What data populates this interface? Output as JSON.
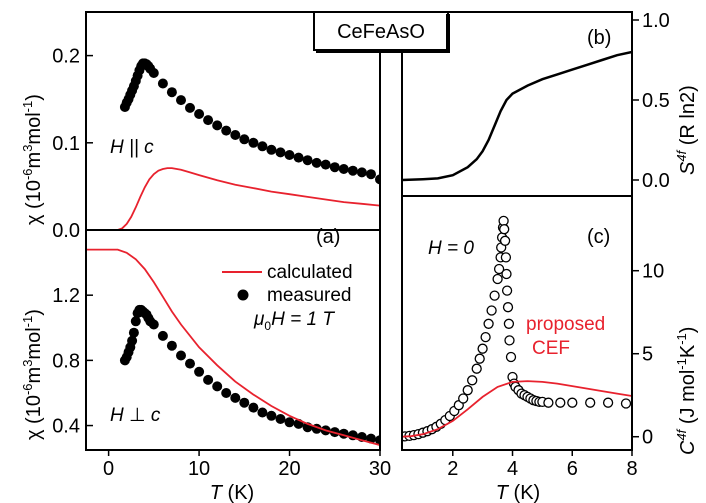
{
  "title_badge": "CeFeAsO",
  "colors": {
    "calculated": "#e8222e",
    "measured": "#000000",
    "frame": "#000000"
  },
  "chart_data": [
    {
      "type": "line",
      "panel": "top-left",
      "xlim": [
        -2.5,
        30
      ],
      "ylim": [
        0,
        0.25
      ],
      "yticks": [
        0.0,
        0.1,
        0.2
      ],
      "ytick_labels": [
        "0.0",
        "0.1",
        "0.2"
      ],
      "annotation": "H || c",
      "series": [
        {
          "style": "filled-circle",
          "x": [
            1.8,
            2.0,
            2.2,
            2.4,
            2.6,
            2.8,
            3.0,
            3.2,
            3.4,
            3.6,
            3.8,
            4.0,
            4.2,
            4.4,
            4.6,
            5.0,
            6.0,
            7.0,
            8.0,
            9.0,
            10.0,
            11.0,
            12.0,
            13.0,
            14.0,
            15.0,
            16.0,
            17.0,
            18.0,
            19.0,
            20.0,
            21.0,
            22.0,
            23.0,
            24.0,
            25.0,
            26.0,
            27.0,
            28.0,
            29.0,
            30.0
          ],
          "y": [
            0.141,
            0.146,
            0.15,
            0.155,
            0.16,
            0.165,
            0.171,
            0.177,
            0.183,
            0.188,
            0.191,
            0.191,
            0.19,
            0.188,
            0.185,
            0.18,
            0.168,
            0.158,
            0.149,
            0.14,
            0.133,
            0.126,
            0.12,
            0.114,
            0.109,
            0.104,
            0.1,
            0.096,
            0.092,
            0.089,
            0.086,
            0.083,
            0.08,
            0.077,
            0.075,
            0.072,
            0.07,
            0.068,
            0.066,
            0.064,
            0.058
          ]
        },
        {
          "style": "line",
          "x": [
            1.0,
            1.5,
            2.0,
            2.5,
            3.0,
            3.5,
            4.0,
            4.5,
            5.0,
            5.5,
            6.0,
            6.5,
            7.0,
            8.0,
            9.0,
            10.0,
            12.0,
            14.0,
            16.0,
            18.0,
            20.0,
            22.0,
            24.0,
            26.0,
            28.0,
            30.0
          ],
          "y": [
            0.0,
            0.002,
            0.007,
            0.015,
            0.026,
            0.038,
            0.049,
            0.058,
            0.064,
            0.068,
            0.07,
            0.071,
            0.071,
            0.069,
            0.066,
            0.063,
            0.057,
            0.052,
            0.048,
            0.044,
            0.041,
            0.038,
            0.035,
            0.032,
            0.03,
            0.028
          ]
        }
      ]
    },
    {
      "type": "line",
      "panel": "bottom-left",
      "label": "(a)",
      "xlim": [
        -2.5,
        30
      ],
      "ylim": [
        0.25,
        1.6
      ],
      "xticks": [
        0,
        10,
        20,
        30
      ],
      "xtick_labels": [
        "0",
        "10",
        "20",
        "30"
      ],
      "yticks": [
        0.4,
        0.8,
        1.2
      ],
      "ytick_labels": [
        "0.4",
        "0.8",
        "1.2"
      ],
      "annotation": "H ⊥ c",
      "series": [
        {
          "name": "measured",
          "style": "filled-circle",
          "x": [
            1.8,
            2.0,
            2.2,
            2.4,
            2.6,
            2.8,
            3.0,
            3.2,
            3.4,
            3.6,
            3.8,
            4.0,
            4.2,
            4.4,
            4.6,
            5.0,
            6.0,
            7.0,
            8.0,
            9.0,
            10.0,
            11.0,
            12.0,
            13.0,
            14.0,
            15.0,
            16.0,
            17.0,
            18.0,
            19.0,
            20.0,
            21.0,
            22.0,
            23.0,
            24.0,
            25.0,
            26.0,
            27.0,
            28.0,
            29.0,
            30.0
          ],
          "y": [
            0.8,
            0.82,
            0.85,
            0.88,
            0.92,
            0.97,
            1.04,
            1.09,
            1.11,
            1.11,
            1.1,
            1.09,
            1.08,
            1.06,
            1.04,
            1.02,
            0.95,
            0.89,
            0.83,
            0.78,
            0.73,
            0.68,
            0.64,
            0.6,
            0.57,
            0.54,
            0.51,
            0.48,
            0.46,
            0.44,
            0.42,
            0.41,
            0.39,
            0.38,
            0.37,
            0.36,
            0.35,
            0.34,
            0.33,
            0.32,
            0.31
          ]
        },
        {
          "name": "calculated",
          "style": "line",
          "x": [
            -2.5,
            0.0,
            1.0,
            2.0,
            3.0,
            4.0,
            5.0,
            6.0,
            7.0,
            8.0,
            10.0,
            12.0,
            14.0,
            16.0,
            18.0,
            20.0,
            22.0,
            24.0,
            26.0,
            28.0,
            30.0
          ],
          "y": [
            1.48,
            1.48,
            1.48,
            1.46,
            1.42,
            1.36,
            1.28,
            1.19,
            1.1,
            1.02,
            0.88,
            0.77,
            0.67,
            0.59,
            0.52,
            0.46,
            0.41,
            0.37,
            0.34,
            0.31,
            0.28
          ]
        }
      ]
    },
    {
      "type": "line",
      "panel": "top-right",
      "label": "(b)",
      "xlim": [
        0.3,
        8
      ],
      "ylim": [
        -0.1,
        1.05
      ],
      "yticks": [
        0.0,
        0.5,
        1.0
      ],
      "ytick_labels": [
        "0.0",
        "0.5",
        "1.0"
      ],
      "series": [
        {
          "style": "line",
          "x": [
            0.3,
            1.0,
            1.5,
            2.0,
            2.5,
            2.8,
            3.0,
            3.2,
            3.4,
            3.6,
            3.8,
            4.0,
            4.5,
            5.0,
            5.5,
            6.0,
            6.5,
            7.0,
            7.5,
            8.0
          ],
          "y": [
            0.0,
            0.005,
            0.01,
            0.03,
            0.08,
            0.13,
            0.18,
            0.25,
            0.34,
            0.43,
            0.5,
            0.54,
            0.59,
            0.63,
            0.66,
            0.69,
            0.72,
            0.75,
            0.78,
            0.8
          ]
        }
      ]
    },
    {
      "type": "scatter",
      "panel": "bottom-right",
      "label": "(c)",
      "xlim": [
        0.3,
        8
      ],
      "ylim": [
        -0.8,
        14.5
      ],
      "xticks": [
        2,
        4,
        6,
        8
      ],
      "xtick_labels": [
        "2",
        "4",
        "6",
        "8"
      ],
      "yticks": [
        0,
        5,
        10
      ],
      "ytick_labels": [
        "0",
        "5",
        "10"
      ],
      "annotation": "H = 0",
      "series": [
        {
          "style": "open-circle",
          "x": [
            0.4,
            0.55,
            0.7,
            0.85,
            1.0,
            1.15,
            1.3,
            1.45,
            1.6,
            1.75,
            1.9,
            2.05,
            2.2,
            2.35,
            2.5,
            2.65,
            2.8,
            2.9,
            3.0,
            3.1,
            3.2,
            3.3,
            3.4,
            3.5,
            3.55,
            3.6,
            3.62,
            3.65,
            3.68,
            3.7,
            3.72,
            3.75,
            3.78,
            3.8,
            3.82,
            3.85,
            3.88,
            3.9,
            3.95,
            4.0,
            4.05,
            4.1,
            4.2,
            4.3,
            4.4,
            4.5,
            4.6,
            4.7,
            4.8,
            4.9,
            5.0,
            5.2,
            5.6,
            6.0,
            6.6,
            7.2,
            7.8
          ],
          "y": [
            0.02,
            0.05,
            0.1,
            0.16,
            0.24,
            0.33,
            0.45,
            0.6,
            0.78,
            1.0,
            1.25,
            1.55,
            1.9,
            2.3,
            2.8,
            3.4,
            4.1,
            4.7,
            5.3,
            6.0,
            6.8,
            7.6,
            8.5,
            9.5,
            10.1,
            10.8,
            11.4,
            12.0,
            12.6,
            13.0,
            12.5,
            11.8,
            10.8,
            9.8,
            8.8,
            7.8,
            6.8,
            5.8,
            4.8,
            3.6,
            3.2,
            3.0,
            2.8,
            2.6,
            2.5,
            2.4,
            2.3,
            2.2,
            2.15,
            2.1,
            2.1,
            2.05,
            2.05,
            2.05,
            2.05,
            2.05,
            2.0
          ]
        },
        {
          "style": "line",
          "x": [
            0.3,
            0.6,
            1.0,
            1.5,
            2.0,
            2.5,
            3.0,
            3.5,
            4.0,
            4.5,
            5.0,
            5.5,
            6.0,
            6.5,
            7.0,
            7.5,
            8.0
          ],
          "y": [
            0.0,
            0.03,
            0.15,
            0.45,
            0.95,
            1.65,
            2.4,
            3.0,
            3.3,
            3.35,
            3.3,
            3.2,
            3.05,
            2.9,
            2.75,
            2.6,
            2.45
          ]
        }
      ]
    }
  ],
  "labels": {
    "left_top_ylabel": "χ (10",
    "left_bottom_ylabel": "χ (10",
    "ylabel_exp1": "-6",
    "ylabel_mid": "m",
    "ylabel_exp2": "3",
    "ylabel_mid2": "mol",
    "ylabel_exp3": "-1",
    "ylabel_end": ")",
    "left_xlabel_T": "T",
    "left_xlabel_unit": " (K)",
    "right_xlabel_T": "T",
    "right_xlabel_unit": " (K)",
    "right_top_S": "S",
    "right_top_S_sup": "4f",
    "right_top_unit": " (R ln2)",
    "right_bottom_C": "C",
    "right_bottom_C_sup": "4f",
    "right_bottom_unit": " (J mol",
    "right_bottom_e1": "-1",
    "right_bottom_K": "K",
    "right_bottom_e2": "-1",
    "right_bottom_end": ")",
    "legend_calculated": "calculated",
    "legend_measured": "measured",
    "legend_field_mu": "μ",
    "legend_field_sub": "0",
    "legend_field_rest": "H = 1 T",
    "proposed": "proposed",
    "cef": "CEF"
  }
}
